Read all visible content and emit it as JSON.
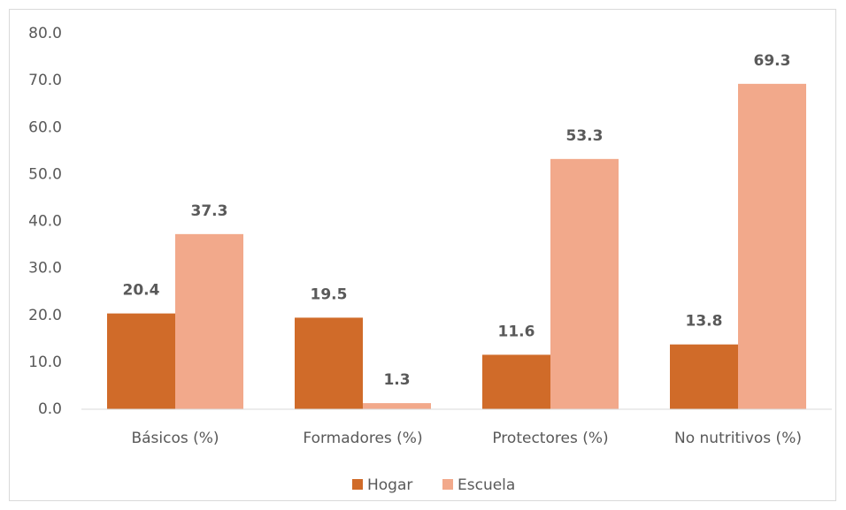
{
  "chart_data": {
    "type": "bar",
    "categories": [
      "Básicos (%)",
      "Formadores (%)",
      "Protectores (%)",
      "No nutritivos (%)"
    ],
    "series": [
      {
        "name": "Hogar",
        "color": "#d06b29",
        "values": [
          20.4,
          19.5,
          11.6,
          13.8
        ]
      },
      {
        "name": "Escuela",
        "color": "#f2a98b",
        "values": [
          37.3,
          1.3,
          53.3,
          69.3
        ]
      }
    ],
    "ylim": [
      0,
      80
    ],
    "yticks": [
      {
        "value": 0,
        "label": "0.0"
      },
      {
        "value": 10,
        "label": "10.0"
      },
      {
        "value": 20,
        "label": "20.0"
      },
      {
        "value": 30,
        "label": "30.0"
      },
      {
        "value": 40,
        "label": "40.0"
      },
      {
        "value": 50,
        "label": "50.0"
      },
      {
        "value": 60,
        "label": "60.0"
      },
      {
        "value": 70,
        "label": "70.0"
      },
      {
        "value": 80,
        "label": "80.0"
      }
    ],
    "grid": false,
    "legend": "bottom"
  }
}
